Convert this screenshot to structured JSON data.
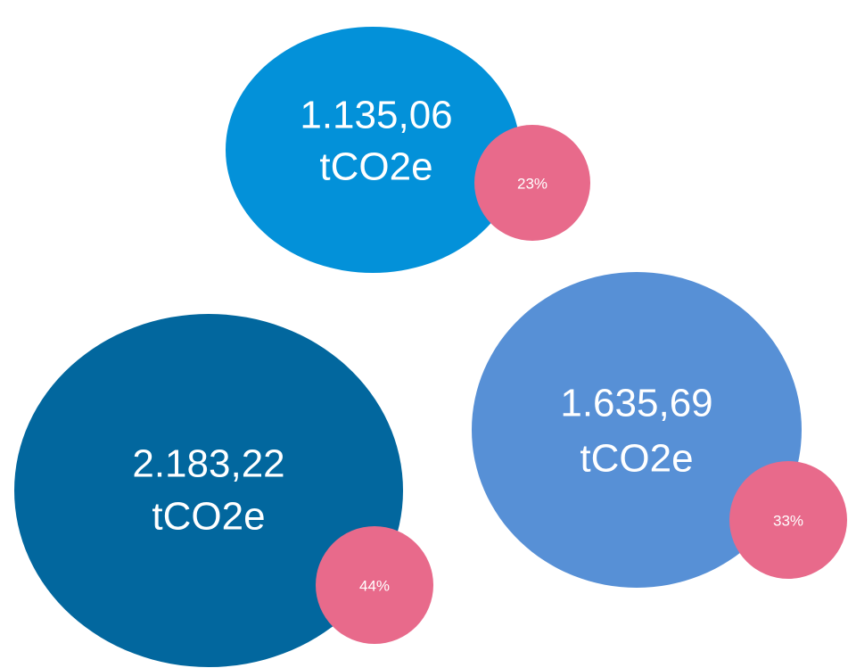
{
  "bubbles": [
    {
      "value": "1.135,06",
      "unit": "tCO2e",
      "share": "23%"
    },
    {
      "value": "2.183,22",
      "unit": "tCO2e",
      "share": "44%"
    },
    {
      "value": "1.635,69",
      "unit": "tCO2e",
      "share": "33%"
    }
  ]
}
